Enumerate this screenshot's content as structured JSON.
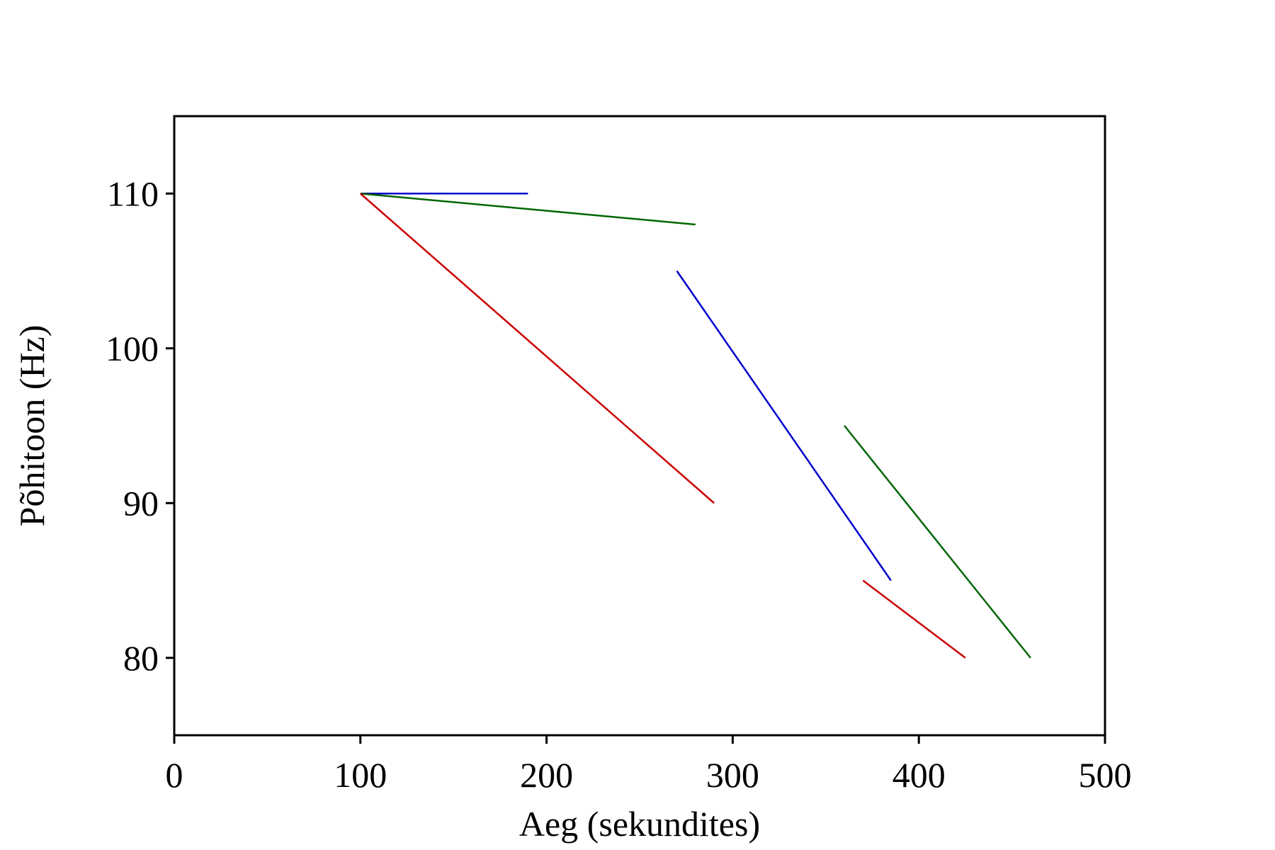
{
  "chart_data": {
    "type": "line",
    "title": "",
    "xlabel": "Aeg (sekundites)",
    "ylabel": "Põhitoon (Hz)",
    "xlim": [
      0,
      500
    ],
    "ylim": [
      75,
      115
    ],
    "xticks": [
      0,
      100,
      200,
      300,
      400,
      500
    ],
    "yticks": [
      80,
      90,
      100,
      110
    ],
    "grid": false,
    "legend": "none",
    "series": [
      {
        "color": "#0000cc",
        "points": [
          [
            100,
            110
          ],
          [
            190,
            110
          ]
        ]
      },
      {
        "color": "#006600",
        "points": [
          [
            100,
            110
          ],
          [
            280,
            108
          ]
        ]
      },
      {
        "color": "#cc0000",
        "points": [
          [
            100,
            110
          ],
          [
            290,
            90
          ]
        ]
      },
      {
        "color": "#0000cc",
        "points": [
          [
            270,
            105
          ],
          [
            385,
            85
          ]
        ]
      },
      {
        "color": "#006600",
        "points": [
          [
            360,
            95
          ],
          [
            460,
            80
          ]
        ]
      },
      {
        "color": "#cc0000",
        "points": [
          [
            370,
            85
          ],
          [
            425,
            80
          ]
        ]
      }
    ]
  }
}
